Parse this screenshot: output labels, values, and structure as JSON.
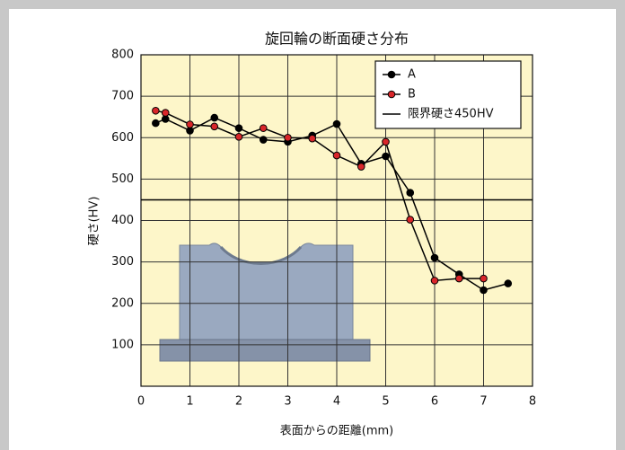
{
  "chart_data": {
    "type": "line",
    "title": "旋回輪の断面硬さ分布",
    "xlabel": "表面からの距離(mm)",
    "ylabel": "硬さ(HV)",
    "xlim": [
      0,
      8
    ],
    "xticks": [
      0,
      1,
      2,
      3,
      4,
      5,
      6,
      7,
      8
    ],
    "ylim": [
      0,
      800
    ],
    "yticks": [
      100,
      200,
      300,
      400,
      500,
      600,
      700,
      800
    ],
    "grid": true,
    "legend": "upper right",
    "threshold": {
      "name": "限界硬さ450HV",
      "value": 450,
      "color": "#000000"
    },
    "series": [
      {
        "name": "A",
        "color": "#000000",
        "marker_color": "#000000",
        "x": [
          0.3,
          0.5,
          1,
          1.5,
          2,
          2.5,
          3,
          3.5,
          4,
          4.5,
          5,
          5.5,
          6,
          6.5,
          7,
          7.5
        ],
        "values": [
          635,
          645,
          617,
          648,
          623,
          595,
          590,
          605,
          633,
          537,
          555,
          467,
          310,
          270,
          232,
          248
        ]
      },
      {
        "name": "B",
        "color": "#000000",
        "marker_color": "#d9262a",
        "x": [
          0.3,
          0.5,
          1,
          1.5,
          2,
          2.5,
          3,
          3.5,
          4,
          4.5,
          5,
          5.5,
          6,
          6.5,
          7
        ],
        "values": [
          665,
          660,
          632,
          627,
          602,
          623,
          600,
          598,
          557,
          530,
          590,
          402,
          255,
          260,
          260
        ]
      }
    ]
  }
}
